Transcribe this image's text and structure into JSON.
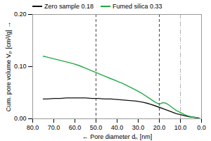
{
  "chart_data": {
    "type": "line",
    "xlabel": "Pore diameter dₙ [nm]",
    "ylabel": "Cum. pore volume Vₚ [cm³/g]",
    "xlim": [
      80.0,
      0.0
    ],
    "ylim": [
      0.0,
      0.2
    ],
    "xticks": [
      {
        "value": 80,
        "label": "80.0"
      },
      {
        "value": 70,
        "label": "70.0"
      },
      {
        "value": 60,
        "label": "60.0"
      },
      {
        "value": 50,
        "label": "50.0"
      },
      {
        "value": 40,
        "label": "40.0"
      },
      {
        "value": 30,
        "label": "30.0"
      },
      {
        "value": 20,
        "label": "20.0"
      },
      {
        "value": 10,
        "label": "10.0"
      },
      {
        "value": 0,
        "label": "0.0"
      }
    ],
    "yticks": [
      {
        "value": 0,
        "label": "0.00"
      },
      {
        "value": 0.1,
        "label": "0.10"
      },
      {
        "value": 0.2,
        "label": "0.20"
      }
    ],
    "grid": false,
    "legend": "top",
    "series": [
      {
        "name": "Zero sample 0.18",
        "color": "#111111",
        "x": [
          75,
          73,
          70,
          67,
          64,
          61,
          58,
          55,
          52,
          49,
          46,
          43,
          40,
          37,
          34,
          31,
          28,
          25,
          22,
          20,
          18,
          16,
          14,
          12,
          10,
          8,
          6,
          4,
          2,
          1
        ],
        "values": [
          0.038,
          0.038,
          0.039,
          0.039,
          0.04,
          0.04,
          0.04,
          0.04,
          0.039,
          0.039,
          0.038,
          0.038,
          0.037,
          0.036,
          0.035,
          0.034,
          0.032,
          0.029,
          0.025,
          0.022,
          0.019,
          0.016,
          0.013,
          0.01,
          0.008,
          0.006,
          0.004,
          0.003,
          0.002,
          0.001
        ]
      },
      {
        "name": "Fumed silica 0.33",
        "color": "#22aa44",
        "x": [
          75,
          73,
          70,
          67,
          64,
          61,
          58,
          55,
          52,
          49,
          46,
          43,
          40,
          37,
          34,
          31,
          28,
          25,
          22,
          20,
          19,
          18,
          17,
          16,
          15,
          14,
          13,
          12,
          10,
          8,
          6,
          4,
          2,
          1
        ],
        "values": [
          0.12,
          0.118,
          0.115,
          0.112,
          0.109,
          0.106,
          0.102,
          0.097,
          0.092,
          0.087,
          0.082,
          0.077,
          0.072,
          0.067,
          0.061,
          0.055,
          0.048,
          0.04,
          0.032,
          0.028,
          0.03,
          0.031,
          0.03,
          0.028,
          0.025,
          0.022,
          0.019,
          0.016,
          0.012,
          0.008,
          0.005,
          0.003,
          0.002,
          0.001
        ]
      }
    ],
    "vlines": [
      {
        "x": 50.0,
        "color": "#333333",
        "line_style": "dashed"
      },
      {
        "x": 20.0,
        "color": "#333333",
        "line_style": "dashed"
      },
      {
        "x": 10.0,
        "color": "#aaaaaa",
        "line_style": "dashdot"
      }
    ]
  }
}
